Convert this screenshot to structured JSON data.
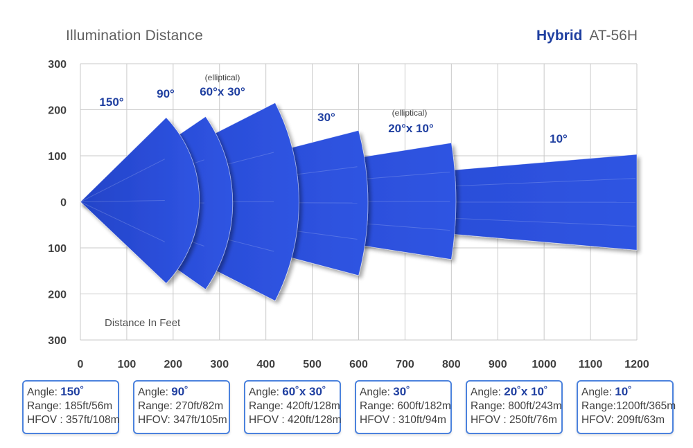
{
  "header": {
    "title": "Illumination Distance",
    "brand": "Hybrid",
    "model": "AT-56H"
  },
  "colors": {
    "beam": "#2f54e2",
    "beam_dark": "#2343c8",
    "grid": "#c9c9c9",
    "label_blue": "#1f3fa0",
    "box_border": "#4b82dd"
  },
  "chart_data": {
    "type": "area",
    "title": "Illumination Distance",
    "xlabel": "Distance In Feet",
    "ylabel": "",
    "xlim": [
      0,
      1200
    ],
    "ylim": [
      -300,
      300
    ],
    "x_ticks": [
      "0",
      "100",
      "200",
      "300",
      "400",
      "500",
      "600",
      "700",
      "800",
      "900",
      "1000",
      "1100",
      "1200"
    ],
    "y_ticks": [
      "300",
      "200",
      "100",
      "0",
      "100",
      "200",
      "300"
    ],
    "grid": true,
    "series": [
      {
        "angle_label": "150°",
        "note": "",
        "range_ft": 185,
        "hfov_ft": 357,
        "x_end": 185,
        "top": 183,
        "bottom": -177,
        "arc": "bulge"
      },
      {
        "angle_label": "90°",
        "note": "",
        "range_ft": 270,
        "hfov_ft": 347,
        "x_end": 270,
        "top": 185,
        "bottom": -190,
        "arc": "bulge"
      },
      {
        "angle_label": "60°x 30°",
        "note": "(elliptical)",
        "range_ft": 420,
        "hfov_ft": 420,
        "x_end": 420,
        "top": 215,
        "bottom": -215,
        "arc": "bulge"
      },
      {
        "angle_label": "30°",
        "note": "",
        "range_ft": 600,
        "hfov_ft": 310,
        "x_end": 600,
        "top": 155,
        "bottom": -160,
        "arc": "bulge"
      },
      {
        "angle_label": "20°x 10°",
        "note": "(elliptical)",
        "range_ft": 800,
        "hfov_ft": 250,
        "x_end": 800,
        "top": 128,
        "bottom": -125,
        "arc": "bulge"
      },
      {
        "angle_label": "10°",
        "note": "",
        "range_ft": 1200,
        "hfov_ft": 209,
        "x_end": 1200,
        "top": 103,
        "bottom": -105,
        "arc": "flat"
      }
    ]
  },
  "info_boxes": [
    {
      "angle_prefix": "Angle: ",
      "angle_value": "150˚",
      "range": "Range: 185ft/56m",
      "hfov": "HFOV : 357ft/108m"
    },
    {
      "angle_prefix": "Angle: ",
      "angle_value": "90˚",
      "range": "Range: 270ft/82m",
      "hfov": "HFOV: 347ft/105m"
    },
    {
      "angle_prefix": "Angle: ",
      "angle_value": "60˚x 30˚",
      "range": "Range: 420ft/128m",
      "hfov": "HFOV : 420ft/128m"
    },
    {
      "angle_prefix": "Angle: ",
      "angle_value": "30˚",
      "range": "Range: 600ft/182m",
      "hfov": "HFOV : 310ft/94m"
    },
    {
      "angle_prefix": "Angle: ",
      "angle_value": "20˚x 10˚",
      "range": "Range: 800ft/243m",
      "hfov": "HFOV : 250ft/76m"
    },
    {
      "angle_prefix": "Angle: ",
      "angle_value": "10˚",
      "range": "Range:1200ft/365m",
      "hfov": "HFOV: 209ft/63m"
    }
  ]
}
